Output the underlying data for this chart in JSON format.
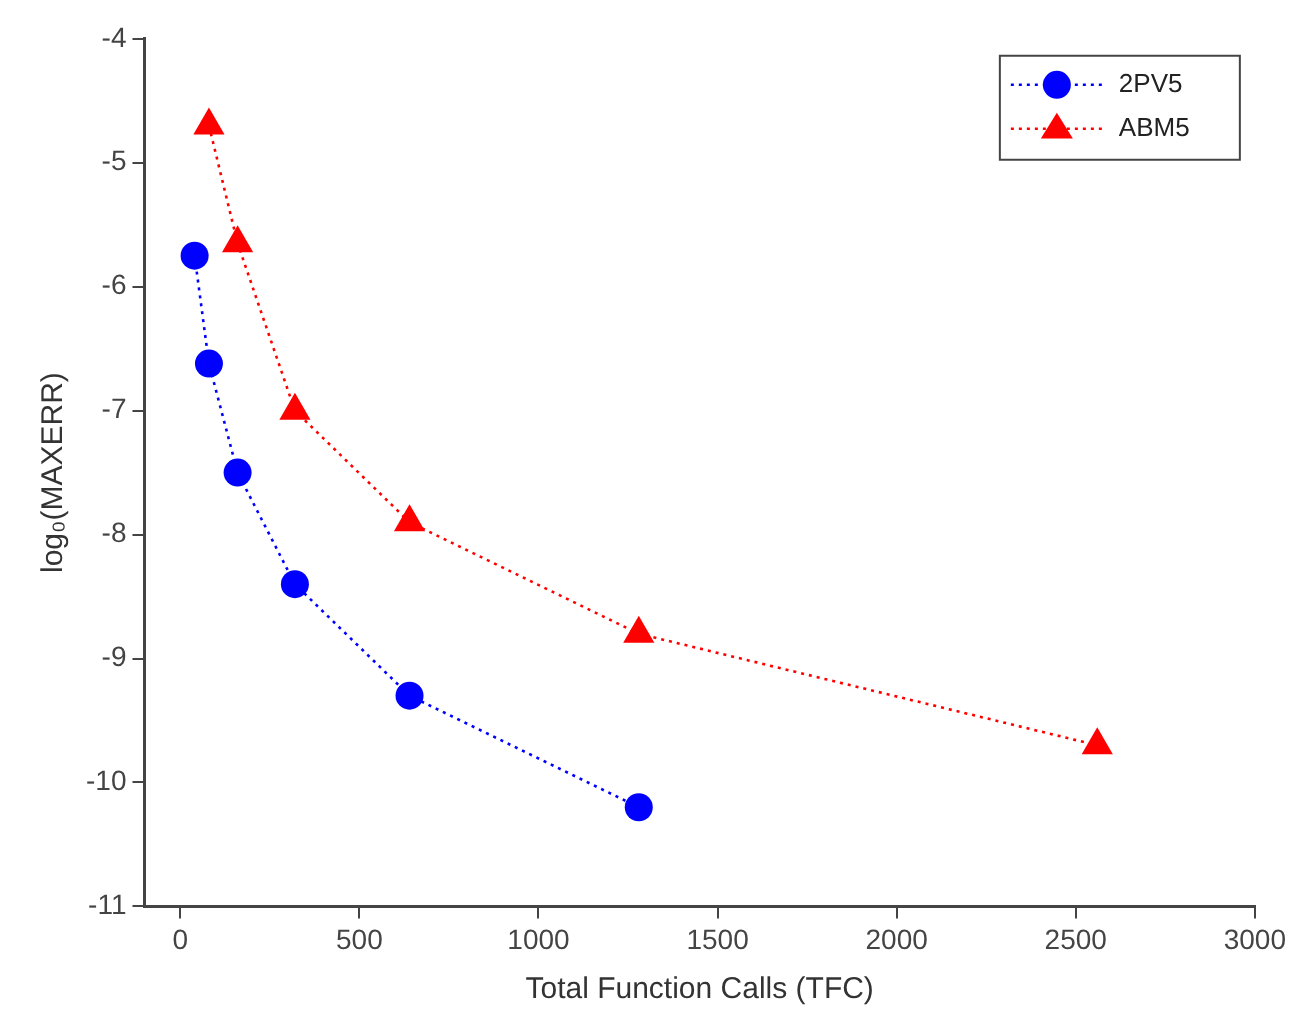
{
  "chart_data": {
    "type": "line",
    "xlabel": "Total Function Calls (TFC)",
    "ylabel": "log₀(MAXERR)",
    "xlim": [
      -100,
      3000
    ],
    "xticks": [
      0,
      500,
      1000,
      1500,
      2000,
      2500,
      3000
    ],
    "ylim": [
      -11,
      -4
    ],
    "yticks": [
      -11,
      -10,
      -9,
      -8,
      -7,
      -6,
      -5,
      -4
    ],
    "grid": false,
    "legend": "top right",
    "line_style": "dotted",
    "series": [
      {
        "name": "2PV5",
        "color": "#0000ff",
        "marker": "circle",
        "x": [
          40,
          80,
          160,
          320,
          640,
          1280
        ],
        "values": [
          -5.75,
          -6.62,
          -7.5,
          -8.4,
          -9.3,
          -10.2
        ]
      },
      {
        "name": "ABM5",
        "color": "#ff0000",
        "marker": "triangle",
        "x": [
          80,
          160,
          320,
          640,
          1280,
          2560
        ],
        "values": [
          -4.7,
          -5.65,
          -7.0,
          -7.9,
          -8.8,
          -9.7
        ]
      }
    ]
  }
}
